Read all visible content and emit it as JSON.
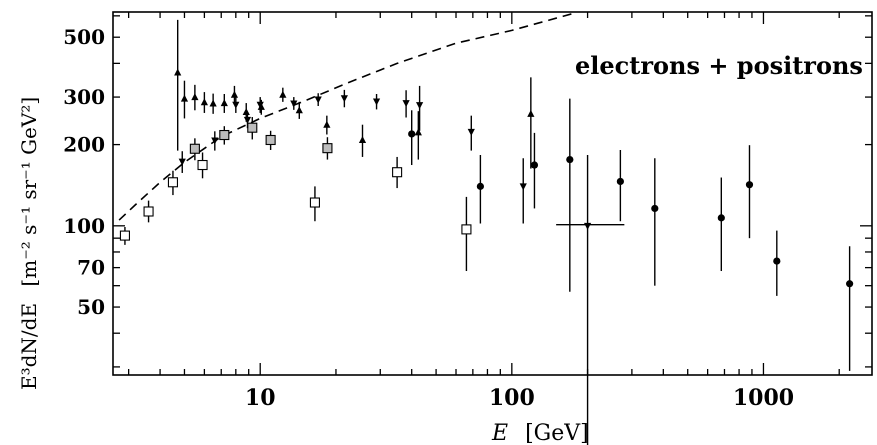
{
  "chart_data": {
    "type": "scatter",
    "title": "",
    "annotation": "electrons + positrons",
    "xlabel_symbol": "E",
    "xlabel_unit": "[GeV]",
    "ylabel_main": "E³dN/dE",
    "ylabel_unit": "[m⁻² s⁻¹ sr⁻¹ GeV²]",
    "xscale": "log",
    "yscale": "log",
    "xlim": [
      2.6,
      2700
    ],
    "ylim": [
      28,
      620
    ],
    "xticks": [
      {
        "value": 10,
        "label": "10"
      },
      {
        "value": 100,
        "label": "100"
      },
      {
        "value": 1000,
        "label": "1000"
      }
    ],
    "yticks": [
      {
        "value": 50,
        "label": "50"
      },
      {
        "value": 70,
        "label": "70"
      },
      {
        "value": 100,
        "label": "100"
      },
      {
        "value": 200,
        "label": "200"
      },
      {
        "value": 300,
        "label": "300"
      },
      {
        "value": 500,
        "label": "500"
      }
    ],
    "grid": false,
    "series": [
      {
        "marker": "open-square",
        "points": [
          {
            "x": 2.9,
            "y": 92,
            "lo": 85,
            "hi": 99
          },
          {
            "x": 3.6,
            "y": 113,
            "lo": 103,
            "hi": 124
          },
          {
            "x": 4.5,
            "y": 145,
            "lo": 130,
            "hi": 160
          },
          {
            "x": 5.9,
            "y": 168,
            "lo": 150,
            "hi": 187
          },
          {
            "x": 16.5,
            "y": 122,
            "lo": 104,
            "hi": 140
          },
          {
            "x": 35,
            "y": 158,
            "lo": 138,
            "hi": 180
          },
          {
            "x": 66,
            "y": 97,
            "lo": 68,
            "hi": 128
          }
        ]
      },
      {
        "marker": "grey-square",
        "points": [
          {
            "x": 5.5,
            "y": 193,
            "lo": 175,
            "hi": 211
          },
          {
            "x": 7.2,
            "y": 217,
            "lo": 200,
            "hi": 234
          },
          {
            "x": 9.3,
            "y": 231,
            "lo": 209,
            "hi": 253
          },
          {
            "x": 11,
            "y": 208,
            "lo": 191,
            "hi": 225
          },
          {
            "x": 18.5,
            "y": 194,
            "lo": 176,
            "hi": 213
          }
        ]
      },
      {
        "marker": "filled-circle",
        "points": [
          {
            "x": 40,
            "y": 219,
            "lo": 168,
            "hi": 268
          },
          {
            "x": 75,
            "y": 140,
            "lo": 102,
            "hi": 183
          },
          {
            "x": 123,
            "y": 168,
            "lo": 116,
            "hi": 221
          },
          {
            "x": 170,
            "y": 176,
            "lo": 57,
            "hi": 296
          },
          {
            "x": 270,
            "y": 146,
            "lo": 104,
            "hi": 191
          },
          {
            "x": 370,
            "y": 116,
            "lo": 60,
            "hi": 178
          },
          {
            "x": 680,
            "y": 107,
            "lo": 68,
            "hi": 151
          },
          {
            "x": 880,
            "y": 142,
            "lo": 90,
            "hi": 199
          },
          {
            "x": 1130,
            "y": 74,
            "lo": 55,
            "hi": 96
          },
          {
            "x": 2200,
            "y": 61,
            "lo": 29,
            "hi": 84
          }
        ]
      },
      {
        "marker": "triangle-up",
        "points": [
          {
            "x": 4.7,
            "y": 370,
            "lo": 190,
            "hi": 580
          },
          {
            "x": 5.0,
            "y": 296,
            "lo": 250,
            "hi": 345
          },
          {
            "x": 5.5,
            "y": 300,
            "lo": 268,
            "hi": 333
          },
          {
            "x": 6.0,
            "y": 287,
            "lo": 262,
            "hi": 313
          },
          {
            "x": 6.5,
            "y": 284,
            "lo": 260,
            "hi": 309
          },
          {
            "x": 7.2,
            "y": 285,
            "lo": 262,
            "hi": 308
          },
          {
            "x": 7.9,
            "y": 306,
            "lo": 282,
            "hi": 330
          },
          {
            "x": 8.8,
            "y": 264,
            "lo": 243,
            "hi": 285
          },
          {
            "x": 10.1,
            "y": 276,
            "lo": 258,
            "hi": 293
          },
          {
            "x": 12.3,
            "y": 306,
            "lo": 288,
            "hi": 325
          },
          {
            "x": 14.3,
            "y": 268,
            "lo": 249,
            "hi": 288
          },
          {
            "x": 18.4,
            "y": 237,
            "lo": 218,
            "hi": 256
          },
          {
            "x": 25.5,
            "y": 208,
            "lo": 180,
            "hi": 237
          },
          {
            "x": 42.5,
            "y": 222,
            "lo": 176,
            "hi": 266
          },
          {
            "x": 119,
            "y": 260,
            "lo": 163,
            "hi": 355
          }
        ]
      },
      {
        "marker": "triangle-down",
        "points": [
          {
            "x": 4.9,
            "y": 173,
            "lo": 157,
            "hi": 189
          },
          {
            "x": 6.6,
            "y": 207,
            "lo": 190,
            "hi": 224
          },
          {
            "x": 8.0,
            "y": 281,
            "lo": 262,
            "hi": 300
          },
          {
            "x": 8.9,
            "y": 247,
            "lo": 230,
            "hi": 264
          },
          {
            "x": 10.0,
            "y": 281,
            "lo": 262,
            "hi": 300
          },
          {
            "x": 13.6,
            "y": 284,
            "lo": 269,
            "hi": 300
          },
          {
            "x": 17.0,
            "y": 294,
            "lo": 278,
            "hi": 310
          },
          {
            "x": 21.6,
            "y": 297,
            "lo": 275,
            "hi": 319
          },
          {
            "x": 29,
            "y": 289,
            "lo": 270,
            "hi": 308
          },
          {
            "x": 38,
            "y": 285,
            "lo": 252,
            "hi": 318
          },
          {
            "x": 43,
            "y": 280,
            "lo": 225,
            "hi": 330
          },
          {
            "x": 69,
            "y": 223,
            "lo": 190,
            "hi": 256
          },
          {
            "x": 111,
            "y": 140,
            "lo": 102,
            "hi": 178
          },
          {
            "x": 200,
            "y": 100,
            "lo": 5,
            "hi": 183
          }
        ]
      }
    ],
    "extra_marks": [
      {
        "kind": "horizontal-bar",
        "x1": 150,
        "x2": 280,
        "y": 101
      }
    ],
    "model_curve": {
      "style": "dashed",
      "points": [
        {
          "x": 2.75,
          "y": 105
        },
        {
          "x": 3.2,
          "y": 120
        },
        {
          "x": 4.0,
          "y": 145
        },
        {
          "x": 5.0,
          "y": 172
        },
        {
          "x": 7.0,
          "y": 214
        },
        {
          "x": 10.0,
          "y": 250
        },
        {
          "x": 15.0,
          "y": 290
        },
        {
          "x": 22.0,
          "y": 337
        },
        {
          "x": 35.0,
          "y": 400
        },
        {
          "x": 60.0,
          "y": 475
        },
        {
          "x": 100.0,
          "y": 530
        },
        {
          "x": 175.0,
          "y": 612
        }
      ]
    }
  }
}
